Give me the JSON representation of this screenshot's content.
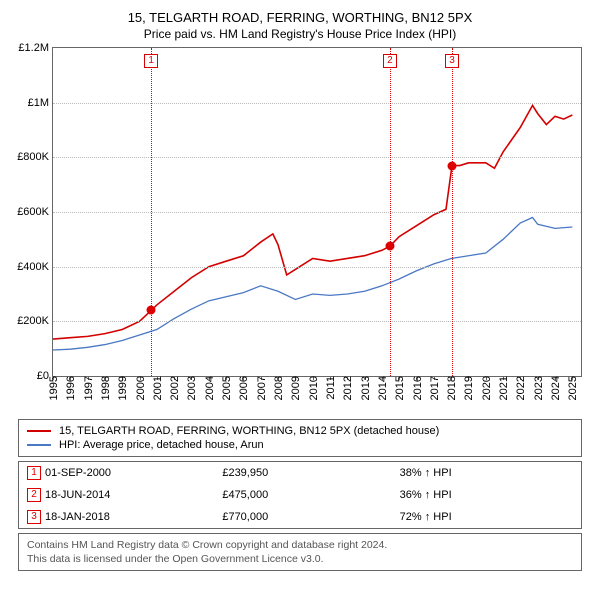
{
  "title": "15, TELGARTH ROAD, FERRING, WORTHING, BN12 5PX",
  "subtitle": "Price paid vs. HM Land Registry's House Price Index (HPI)",
  "chart": {
    "type": "line",
    "background_color": "#ffffff",
    "grid_color": "#bbbbbb",
    "border_color": "#666666",
    "xlim": [
      1995,
      2025.5
    ],
    "ylim": [
      0,
      1200000
    ],
    "yticks": [
      0,
      200000,
      400000,
      600000,
      800000,
      1000000,
      1200000
    ],
    "ytick_labels": [
      "£0",
      "£200K",
      "£400K",
      "£600K",
      "£800K",
      "£1M",
      "£1.2M"
    ],
    "xticks": [
      1995,
      1996,
      1997,
      1998,
      1999,
      2000,
      2001,
      2002,
      2003,
      2004,
      2005,
      2006,
      2007,
      2008,
      2009,
      2010,
      2011,
      2012,
      2013,
      2014,
      2015,
      2016,
      2017,
      2018,
      2019,
      2020,
      2021,
      2022,
      2023,
      2024,
      2025
    ],
    "label_fontsize": 11,
    "series": [
      {
        "name": "price_paid",
        "color": "#d40000",
        "line_width": 1.6,
        "points": [
          [
            1995,
            135000
          ],
          [
            1996,
            140000
          ],
          [
            1997,
            145000
          ],
          [
            1998,
            155000
          ],
          [
            1999,
            170000
          ],
          [
            2000,
            200000
          ],
          [
            2000.67,
            239950
          ],
          [
            2001,
            260000
          ],
          [
            2002,
            310000
          ],
          [
            2003,
            360000
          ],
          [
            2004,
            400000
          ],
          [
            2005,
            420000
          ],
          [
            2006,
            440000
          ],
          [
            2007,
            490000
          ],
          [
            2007.7,
            520000
          ],
          [
            2008,
            480000
          ],
          [
            2008.5,
            370000
          ],
          [
            2009,
            390000
          ],
          [
            2010,
            430000
          ],
          [
            2011,
            420000
          ],
          [
            2012,
            430000
          ],
          [
            2013,
            440000
          ],
          [
            2014,
            460000
          ],
          [
            2014.46,
            475000
          ],
          [
            2015,
            510000
          ],
          [
            2016,
            550000
          ],
          [
            2017,
            590000
          ],
          [
            2017.7,
            610000
          ],
          [
            2018.05,
            770000
          ],
          [
            2018.5,
            770000
          ],
          [
            2019,
            780000
          ],
          [
            2020,
            780000
          ],
          [
            2020.5,
            760000
          ],
          [
            2021,
            820000
          ],
          [
            2022,
            910000
          ],
          [
            2022.7,
            990000
          ],
          [
            2023,
            960000
          ],
          [
            2023.5,
            920000
          ],
          [
            2024,
            950000
          ],
          [
            2024.5,
            940000
          ],
          [
            2025,
            955000
          ]
        ]
      },
      {
        "name": "hpi",
        "color": "#4a78c4",
        "line_width": 1.3,
        "points": [
          [
            1995,
            95000
          ],
          [
            1996,
            98000
          ],
          [
            1997,
            105000
          ],
          [
            1998,
            115000
          ],
          [
            1999,
            130000
          ],
          [
            2000,
            150000
          ],
          [
            2001,
            170000
          ],
          [
            2002,
            210000
          ],
          [
            2003,
            245000
          ],
          [
            2004,
            275000
          ],
          [
            2005,
            290000
          ],
          [
            2006,
            305000
          ],
          [
            2007,
            330000
          ],
          [
            2008,
            310000
          ],
          [
            2009,
            280000
          ],
          [
            2010,
            300000
          ],
          [
            2011,
            295000
          ],
          [
            2012,
            300000
          ],
          [
            2013,
            310000
          ],
          [
            2014,
            330000
          ],
          [
            2015,
            355000
          ],
          [
            2016,
            385000
          ],
          [
            2017,
            410000
          ],
          [
            2018,
            430000
          ],
          [
            2019,
            440000
          ],
          [
            2020,
            450000
          ],
          [
            2021,
            500000
          ],
          [
            2022,
            560000
          ],
          [
            2022.7,
            580000
          ],
          [
            2023,
            555000
          ],
          [
            2024,
            540000
          ],
          [
            2025,
            545000
          ]
        ]
      }
    ],
    "markers": [
      {
        "n": "1",
        "x": 2000.67,
        "y": 239950
      },
      {
        "n": "2",
        "x": 2014.46,
        "y": 475000
      },
      {
        "n": "3",
        "x": 2018.05,
        "y": 770000
      }
    ],
    "marker_box_color": "#d40000",
    "marker_line_color": "#d40000"
  },
  "legend": {
    "items": [
      {
        "color": "#d40000",
        "label": "15, TELGARTH ROAD, FERRING, WORTHING, BN12 5PX (detached house)"
      },
      {
        "color": "#4a78c4",
        "label": "HPI: Average price, detached house, Arun"
      }
    ]
  },
  "transactions": [
    {
      "n": "1",
      "date": "01-SEP-2000",
      "price": "£239,950",
      "delta": "38% ↑ HPI"
    },
    {
      "n": "2",
      "date": "18-JUN-2014",
      "price": "£475,000",
      "delta": "36% ↑ HPI"
    },
    {
      "n": "3",
      "date": "18-JAN-2018",
      "price": "£770,000",
      "delta": "72% ↑ HPI"
    }
  ],
  "footer": {
    "line1": "Contains HM Land Registry data © Crown copyright and database right 2024.",
    "line2": "This data is licensed under the Open Government Licence v3.0."
  }
}
